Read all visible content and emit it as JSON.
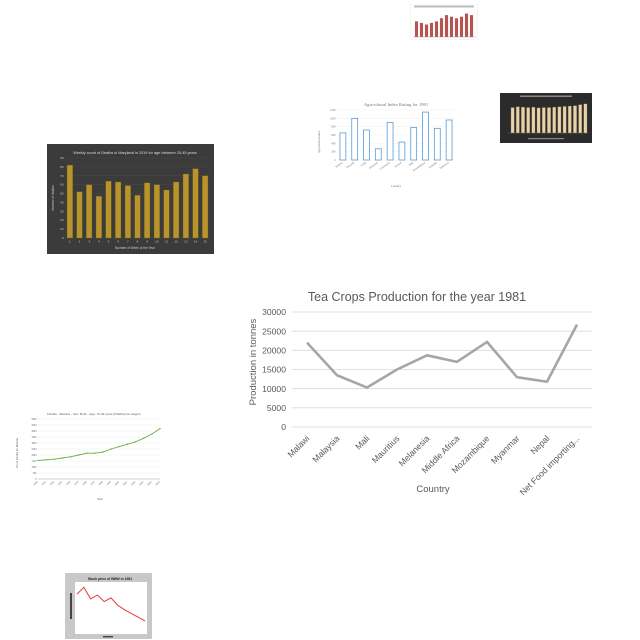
{
  "chart_data": [
    {
      "type": "bar",
      "title": "",
      "values": [
        10,
        9,
        8,
        9,
        10,
        12,
        14,
        13,
        12,
        13,
        15,
        14
      ],
      "color": "#b85450"
    },
    {
      "type": "bar",
      "title": "Agricultural Index Rating for 1981",
      "xlabel": "Country",
      "ylabel": "Agricultural index",
      "categories": [
        "Bolivia",
        "Burundi",
        "Chile",
        "Denmark",
        "Guatemala",
        "Iceland",
        "Mali",
        "Mozambique",
        "Namibia",
        "Tajikistan"
      ],
      "ylim": [
        0,
        1200
      ],
      "yticks": [
        "0",
        "200",
        "400",
        "600",
        "800",
        "1000",
        "1200"
      ],
      "values": [
        650,
        1000,
        720,
        270,
        900,
        430,
        780,
        1150,
        760,
        960
      ],
      "color": "#5b9bd5"
    },
    {
      "type": "bar",
      "title": "",
      "values": [
        70,
        72,
        71,
        70,
        71,
        69,
        70,
        70,
        71,
        72,
        73,
        74,
        75,
        78,
        80
      ],
      "color": "#e8d2a8",
      "background": "#2b2b2b"
    },
    {
      "type": "bar",
      "title": "Weekly count of Deaths in Maryland in 2019 for age between 25-45 years",
      "xlabel": "Number of Week of the Year",
      "ylabel": "Number of deaths",
      "categories": [
        "1",
        "2",
        "3",
        "4",
        "5",
        "6",
        "7",
        "8",
        "9",
        "10",
        "11",
        "12",
        "13",
        "14",
        "15"
      ],
      "ylim": [
        0,
        90
      ],
      "yticks": [
        "0",
        "10",
        "20",
        "30",
        "40",
        "50",
        "60",
        "70",
        "80",
        "90"
      ],
      "values": [
        82,
        52,
        60,
        47,
        64,
        63,
        59,
        48,
        62,
        60,
        54,
        63,
        72,
        78,
        70
      ],
      "color": "#b8942b",
      "background": "#3b3b3b"
    },
    {
      "type": "line",
      "title": "Tea Crops  Production for the year 1981",
      "xlabel": "Country",
      "ylabel": "Production in tonnes",
      "categories": [
        "Malawi",
        "Malaysia",
        "Mali",
        "Mauritius",
        "Melanesia",
        "Middle Africa",
        "Mozambique",
        "Myanmar",
        "Nepal",
        "Net Food importing..."
      ],
      "values": [
        22000,
        13500,
        10300,
        15000,
        18700,
        17000,
        22200,
        13000,
        11800,
        26700
      ],
      "ylim": [
        0,
        30000
      ],
      "yticks": [
        "0",
        "5000",
        "10000",
        "15000",
        "20000",
        "25000",
        "30000"
      ],
      "grid": true,
      "color": "#a6a6a6"
    },
    {
      "type": "line",
      "title": "Deaths - Malaria - Sex: Both - Age: 10-49 years (Number) in Angola",
      "xlabel": "Year",
      "ylabel": "No of Deaths by Malaria",
      "categories": [
        "1990",
        "1991",
        "1992",
        "1993",
        "1994",
        "1995",
        "1996",
        "1997",
        "1998",
        "1999",
        "2000",
        "2001",
        "2002",
        "2003",
        "2004",
        "2005"
      ],
      "ylim": [
        0,
        5000
      ],
      "yticks": [
        "0",
        "500",
        "1000",
        "1500",
        "2000",
        "2500",
        "3000",
        "3500",
        "4000",
        "4500",
        "5000"
      ],
      "values": [
        1550,
        1600,
        1650,
        1750,
        1850,
        2000,
        2150,
        2150,
        2250,
        2500,
        2700,
        2900,
        3100,
        3400,
        3750,
        4200
      ],
      "grid": true,
      "color": "#70ad47"
    },
    {
      "type": "line",
      "title": "Stock price of BMW in 1981",
      "values": [
        80,
        95,
        70,
        78,
        64,
        72,
        56,
        46,
        38,
        30,
        22
      ],
      "color": "#e03b3b",
      "background": "#c8c8c8"
    }
  ]
}
